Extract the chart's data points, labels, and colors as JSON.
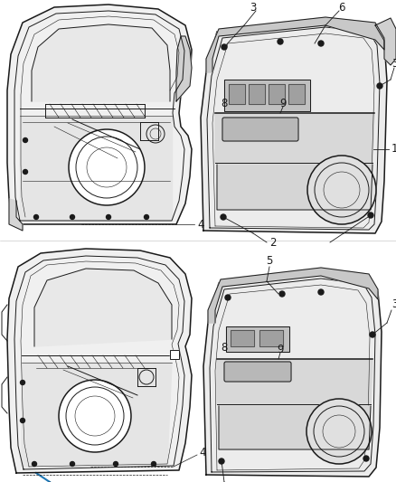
{
  "background_color": "#ffffff",
  "fig_width": 4.38,
  "fig_height": 5.33,
  "dpi": 100,
  "line_color": "#1a1a1a",
  "gray_fill": "#d8d8d8",
  "light_fill": "#eeeeee",
  "mid_fill": "#c8c8c8"
}
